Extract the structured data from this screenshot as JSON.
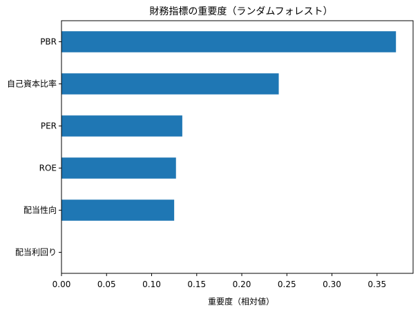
{
  "chart_data": {
    "type": "bar",
    "orientation": "horizontal",
    "title": "財務指標の重要度（ランダムフォレスト）",
    "xlabel": "重要度（相対値）",
    "ylabel": "",
    "categories": [
      "PBR",
      "自己資本比率",
      "PER",
      "ROE",
      "配当性向",
      "配当利回り"
    ],
    "values": [
      0.371,
      0.241,
      0.134,
      0.127,
      0.125,
      0.0
    ],
    "xlim": [
      0.0,
      0.39
    ],
    "xticks": [
      0.0,
      0.05,
      0.1,
      0.15,
      0.2,
      0.25,
      0.3,
      0.35
    ],
    "xtick_labels": [
      "0.00",
      "0.05",
      "0.10",
      "0.15",
      "0.20",
      "0.25",
      "0.30",
      "0.35"
    ],
    "bar_color": "#1f77b4",
    "grid": false,
    "legend": "none"
  }
}
